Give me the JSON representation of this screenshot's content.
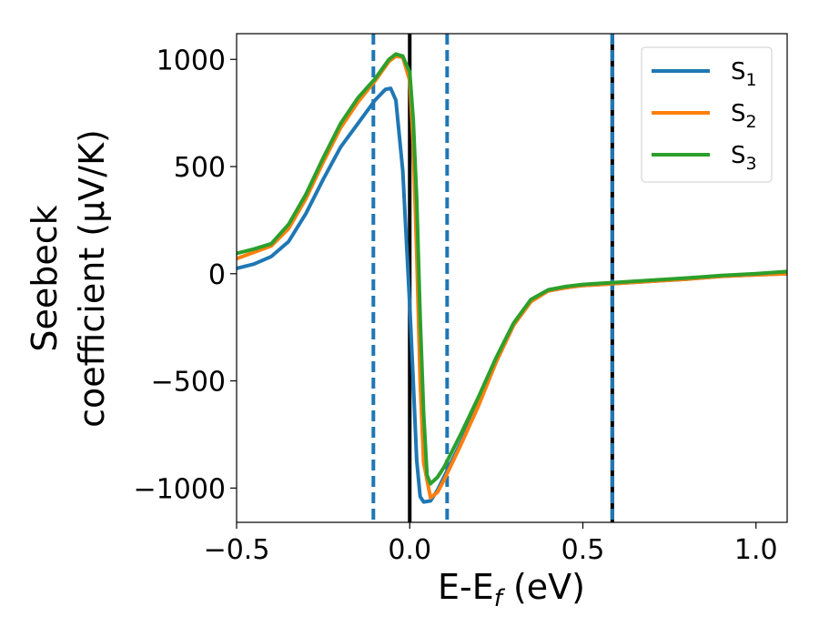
{
  "chart_data": {
    "type": "line",
    "xlabel": "E-E",
    "xlabel_sub": "f",
    "xlabel_unit": " (eV)",
    "ylabel_line1": "Seebeck",
    "ylabel_line2": "coefficient  (μV/K)",
    "xlim": [
      -0.5,
      1.09
    ],
    "ylim": [
      -1160,
      1120
    ],
    "x_ticks": [
      -0.5,
      0.0,
      0.5,
      1.0
    ],
    "x_tick_labels": [
      "−0.5",
      "0.0",
      "0.5",
      "1.0"
    ],
    "y_ticks": [
      -1000,
      -500,
      0,
      500,
      1000
    ],
    "y_tick_labels": [
      "−1000",
      "−500",
      "0",
      "500",
      "1000"
    ],
    "grid": false,
    "legend_placement": "top-right",
    "vertical_lines": [
      {
        "x": 0.0,
        "style": "solid",
        "color": "#000000"
      },
      {
        "x": -0.105,
        "style": "dashed",
        "color": "#1f77b4"
      },
      {
        "x": 0.108,
        "style": "dashed",
        "color": "#1f77b4"
      },
      {
        "x": 0.585,
        "style": "solid",
        "color": "#000000"
      },
      {
        "x": 0.585,
        "style": "dashed",
        "color": "#1f77b4"
      }
    ],
    "series": [
      {
        "name": "S",
        "sub": "1",
        "color": "#1f77b4",
        "x": [
          -0.5,
          -0.45,
          -0.4,
          -0.35,
          -0.3,
          -0.25,
          -0.2,
          -0.15,
          -0.1,
          -0.07,
          -0.055,
          -0.04,
          -0.02,
          0.0,
          0.01,
          0.02,
          0.03,
          0.04,
          0.06,
          0.08,
          0.1,
          0.15,
          0.2,
          0.25,
          0.3,
          0.35,
          0.4,
          0.45,
          0.5,
          0.55,
          0.6,
          0.7,
          0.8,
          0.9,
          1.0,
          1.09
        ],
        "y": [
          25,
          45,
          80,
          150,
          280,
          440,
          590,
          700,
          810,
          860,
          865,
          810,
          480,
          -150,
          -500,
          -870,
          -1040,
          -1065,
          -1060,
          -1010,
          -945,
          -780,
          -600,
          -410,
          -240,
          -130,
          -80,
          -65,
          -55,
          -50,
          -45,
          -35,
          -25,
          -12,
          -5,
          0
        ]
      },
      {
        "name": "S",
        "sub": "2",
        "color": "#ff7f0e",
        "x": [
          -0.5,
          -0.45,
          -0.4,
          -0.35,
          -0.3,
          -0.25,
          -0.2,
          -0.15,
          -0.1,
          -0.06,
          -0.04,
          -0.02,
          0.0,
          0.01,
          0.02,
          0.03,
          0.04,
          0.06,
          0.08,
          0.1,
          0.15,
          0.2,
          0.25,
          0.3,
          0.35,
          0.4,
          0.45,
          0.5,
          0.55,
          0.6,
          0.7,
          0.8,
          0.9,
          1.0,
          1.09
        ],
        "y": [
          70,
          100,
          130,
          210,
          350,
          520,
          680,
          800,
          900,
          990,
          1015,
          1010,
          900,
          600,
          100,
          -500,
          -880,
          -1045,
          -1020,
          -960,
          -790,
          -610,
          -410,
          -240,
          -130,
          -80,
          -65,
          -55,
          -50,
          -45,
          -35,
          -25,
          -12,
          -5,
          0
        ]
      },
      {
        "name": "S",
        "sub": "3",
        "color": "#2ca02c",
        "x": [
          -0.5,
          -0.45,
          -0.4,
          -0.35,
          -0.3,
          -0.25,
          -0.2,
          -0.15,
          -0.1,
          -0.06,
          -0.04,
          -0.02,
          0.0,
          0.01,
          0.02,
          0.03,
          0.04,
          0.05,
          0.06,
          0.08,
          0.1,
          0.15,
          0.2,
          0.25,
          0.3,
          0.35,
          0.4,
          0.45,
          0.5,
          0.55,
          0.6,
          0.7,
          0.8,
          0.9,
          1.0,
          1.09
        ],
        "y": [
          95,
          115,
          140,
          230,
          370,
          540,
          700,
          820,
          910,
          1000,
          1025,
          1015,
          940,
          720,
          350,
          -200,
          -650,
          -940,
          -980,
          -950,
          -900,
          -740,
          -570,
          -390,
          -230,
          -120,
          -75,
          -60,
          -50,
          -45,
          -40,
          -30,
          -20,
          -8,
          0,
          10
        ]
      }
    ]
  }
}
